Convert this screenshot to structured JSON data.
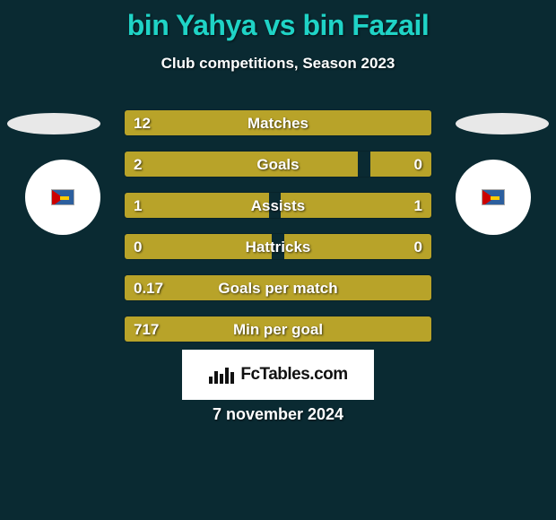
{
  "background_color": "#0a2a32",
  "title_color": "#1fd3c6",
  "text_color": "#ffffff",
  "bar_color_left": "#b8a329",
  "bar_color_right": "#b8a329",
  "title": "bin Yahya vs bin Fazail",
  "subtitle": "Club competitions, Season 2023",
  "date": "7 november 2024",
  "logo_text": "FcTables.com",
  "player_left": {
    "name": "bin Yahya",
    "flag_colors": [
      "#2c5f9e",
      "#ffffff",
      "#cc0000"
    ]
  },
  "player_right": {
    "name": "bin Fazail",
    "flag_colors": [
      "#2c5f9e",
      "#ffffff",
      "#cc0000"
    ]
  },
  "rows": [
    {
      "label": "Matches",
      "left_val": "12",
      "right_val": "",
      "left_pct": 100,
      "right_pct": 0
    },
    {
      "label": "Goals",
      "left_val": "2",
      "right_val": "0",
      "left_pct": 76,
      "right_pct": 20
    },
    {
      "label": "Assists",
      "left_val": "1",
      "right_val": "1",
      "left_pct": 47,
      "right_pct": 49
    },
    {
      "label": "Hattricks",
      "left_val": "0",
      "right_val": "0",
      "left_pct": 48,
      "right_pct": 48
    },
    {
      "label": "Goals per match",
      "left_val": "0.17",
      "right_val": "",
      "left_pct": 100,
      "right_pct": 0
    },
    {
      "label": "Min per goal",
      "left_val": "717",
      "right_val": "",
      "left_pct": 100,
      "right_pct": 0
    }
  ]
}
